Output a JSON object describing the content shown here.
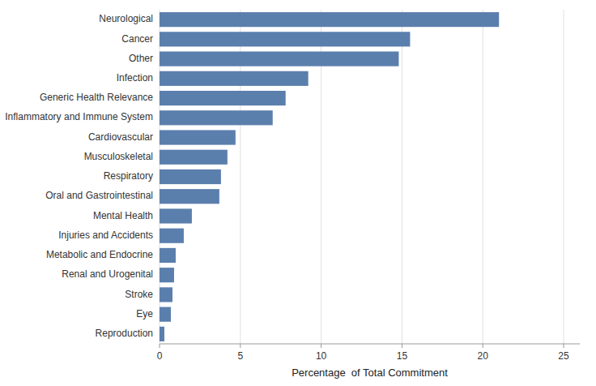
{
  "chart_data": {
    "type": "bar",
    "orientation": "horizontal",
    "categories": [
      "Reproduction",
      "Eye",
      "Stroke",
      "Renal and Urogenital",
      "Metabolic and Endocrine",
      "Injuries and Accidents",
      "Mental Health",
      "Oral and Gastrointestinal",
      "Respiratory",
      "Musculoskeletal",
      "Cardiovascular",
      "Inflammatory and Immune System",
      "Generic Health Relevance",
      "Infection",
      "Other",
      "Cancer",
      "Neurological"
    ],
    "values": [
      0.3,
      0.7,
      0.8,
      0.9,
      1.0,
      1.5,
      2.0,
      3.7,
      3.8,
      4.2,
      4.7,
      7.0,
      7.8,
      9.2,
      14.8,
      15.5,
      21.0
    ],
    "color": "#5b7fad",
    "xlabel": "Percentage  of Total Commitment",
    "xlim": [
      0,
      26
    ],
    "xticks": [
      0,
      5,
      10,
      15,
      20,
      25
    ],
    "grid": true
  }
}
